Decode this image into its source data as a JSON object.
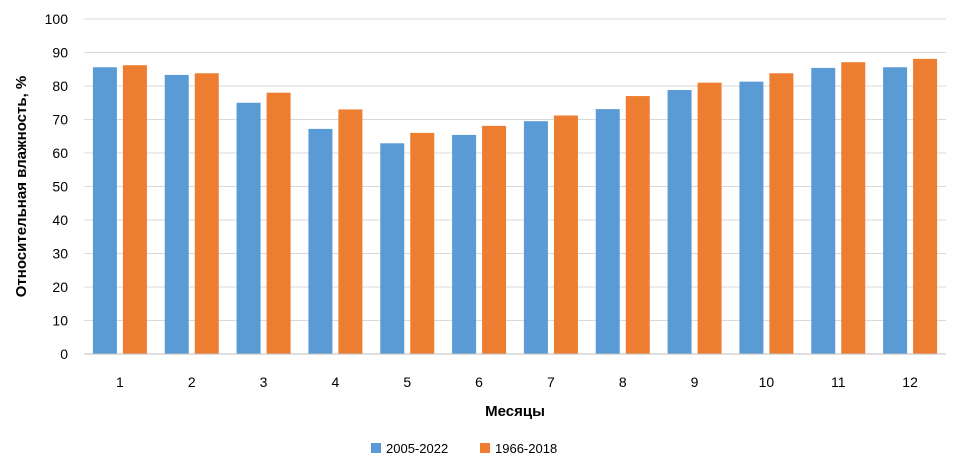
{
  "chart_data": {
    "type": "bar",
    "title": "",
    "xlabel": "Месяцы",
    "ylabel": "Относительная влажность, %",
    "categories": [
      "1",
      "2",
      "3",
      "4",
      "5",
      "6",
      "7",
      "8",
      "9",
      "10",
      "11",
      "12"
    ],
    "ylim": [
      0,
      100
    ],
    "yticks": [
      "0",
      "10",
      "20",
      "30",
      "40",
      "50",
      "60",
      "70",
      "80",
      "90",
      "100"
    ],
    "grid": true,
    "legend_position": "bottom",
    "series": [
      {
        "name": "2005-2022",
        "color": "#5b9bd5",
        "values": [
          85.6,
          83.3,
          75.0,
          67.2,
          62.9,
          65.4,
          69.5,
          73.1,
          78.8,
          81.3,
          85.4,
          85.6
        ]
      },
      {
        "name": "1966-2018",
        "color": "#ed7d31",
        "values": [
          86.2,
          83.8,
          78.0,
          73.0,
          66.0,
          68.1,
          71.2,
          77.0,
          81.0,
          83.8,
          87.1,
          88.1
        ]
      }
    ]
  }
}
